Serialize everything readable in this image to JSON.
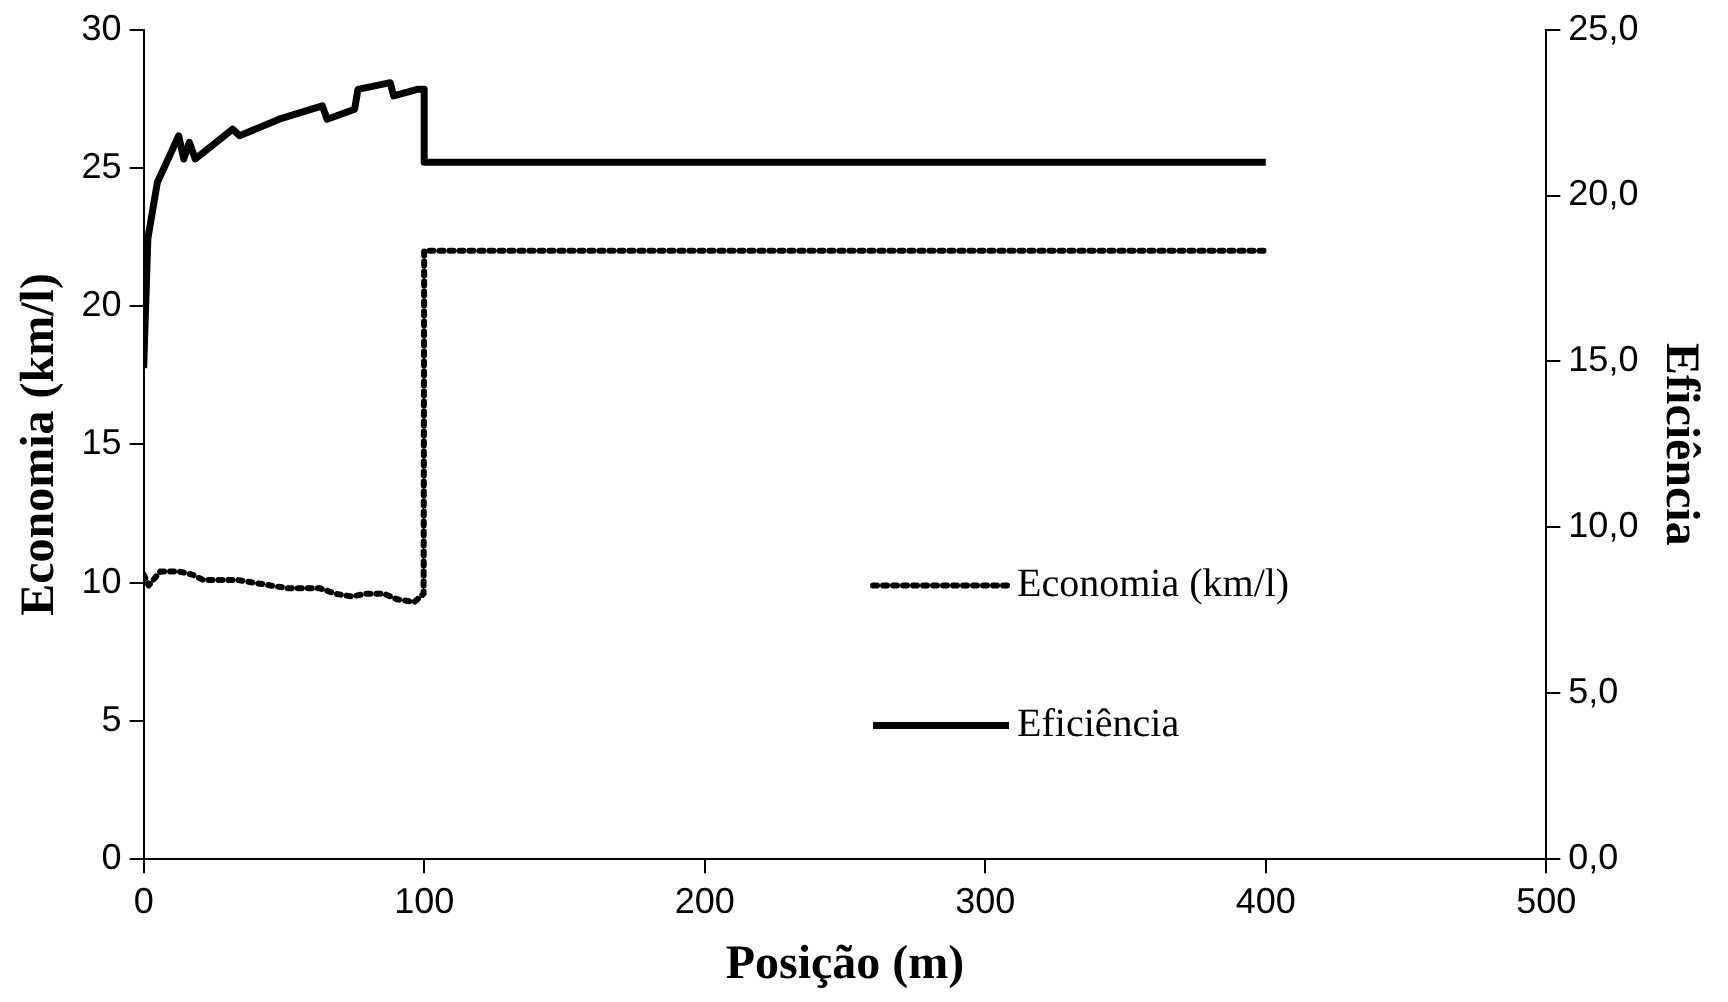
{
  "chart_data": {
    "type": "line",
    "xlabel": "Posição (m)",
    "ylabel": "Economia (km/l)",
    "y2label": "Eficiência",
    "xlim": [
      0,
      500
    ],
    "xticks": [
      0,
      100,
      200,
      300,
      400,
      500
    ],
    "ylim": [
      0,
      30
    ],
    "yticks": [
      0,
      5,
      10,
      15,
      20,
      25,
      30
    ],
    "y2lim": [
      0,
      25
    ],
    "y2ticks": [
      {
        "value": 0,
        "label": "0,0"
      },
      {
        "value": 5,
        "label": "5,0"
      },
      {
        "value": 10,
        "label": "10,0"
      },
      {
        "value": 15,
        "label": "15,0"
      },
      {
        "value": 20,
        "label": "20,0"
      },
      {
        "value": 25,
        "label": "25,0"
      }
    ],
    "grid": false,
    "legend": "bottom right",
    "marker": "none",
    "series": [
      {
        "name": "Economia (km/l)",
        "color": "#000000",
        "line_style": "dotted",
        "x": [
          0,
          1.8,
          5.9,
          12.8,
          17.1,
          21.2,
          33.3,
          39.2,
          51.2,
          62.7,
          68.4,
          74.2,
          79.3,
          85.7,
          90.3,
          96.5,
          99.8,
          100,
          400
        ],
        "values": [
          10.3,
          9.9,
          10.4,
          10.4,
          10.3,
          10.1,
          10.1,
          10.0,
          9.8,
          9.8,
          9.6,
          9.5,
          9.6,
          9.6,
          9.4,
          9.3,
          9.6,
          22,
          22
        ]
      },
      {
        "name": "Eficiência",
        "color": "#000000",
        "line_style": "solid",
        "axis": "y2",
        "x": [
          0,
          1.5,
          4.9,
          8.2,
          12.5,
          14.3,
          16.3,
          18.4,
          31.7,
          34.2,
          48.3,
          63.7,
          65.4,
          75.2,
          76.4,
          87.9,
          89.1,
          97.6,
          100,
          100,
          400
        ],
        "values": [
          14.8,
          18.7,
          20.4,
          21.0,
          21.8,
          21.1,
          21.6,
          21.1,
          22.0,
          21.8,
          22.3,
          22.7,
          22.3,
          22.6,
          23.2,
          23.4,
          23.0,
          23.2,
          23.2,
          21.0,
          21.0
        ]
      }
    ]
  }
}
